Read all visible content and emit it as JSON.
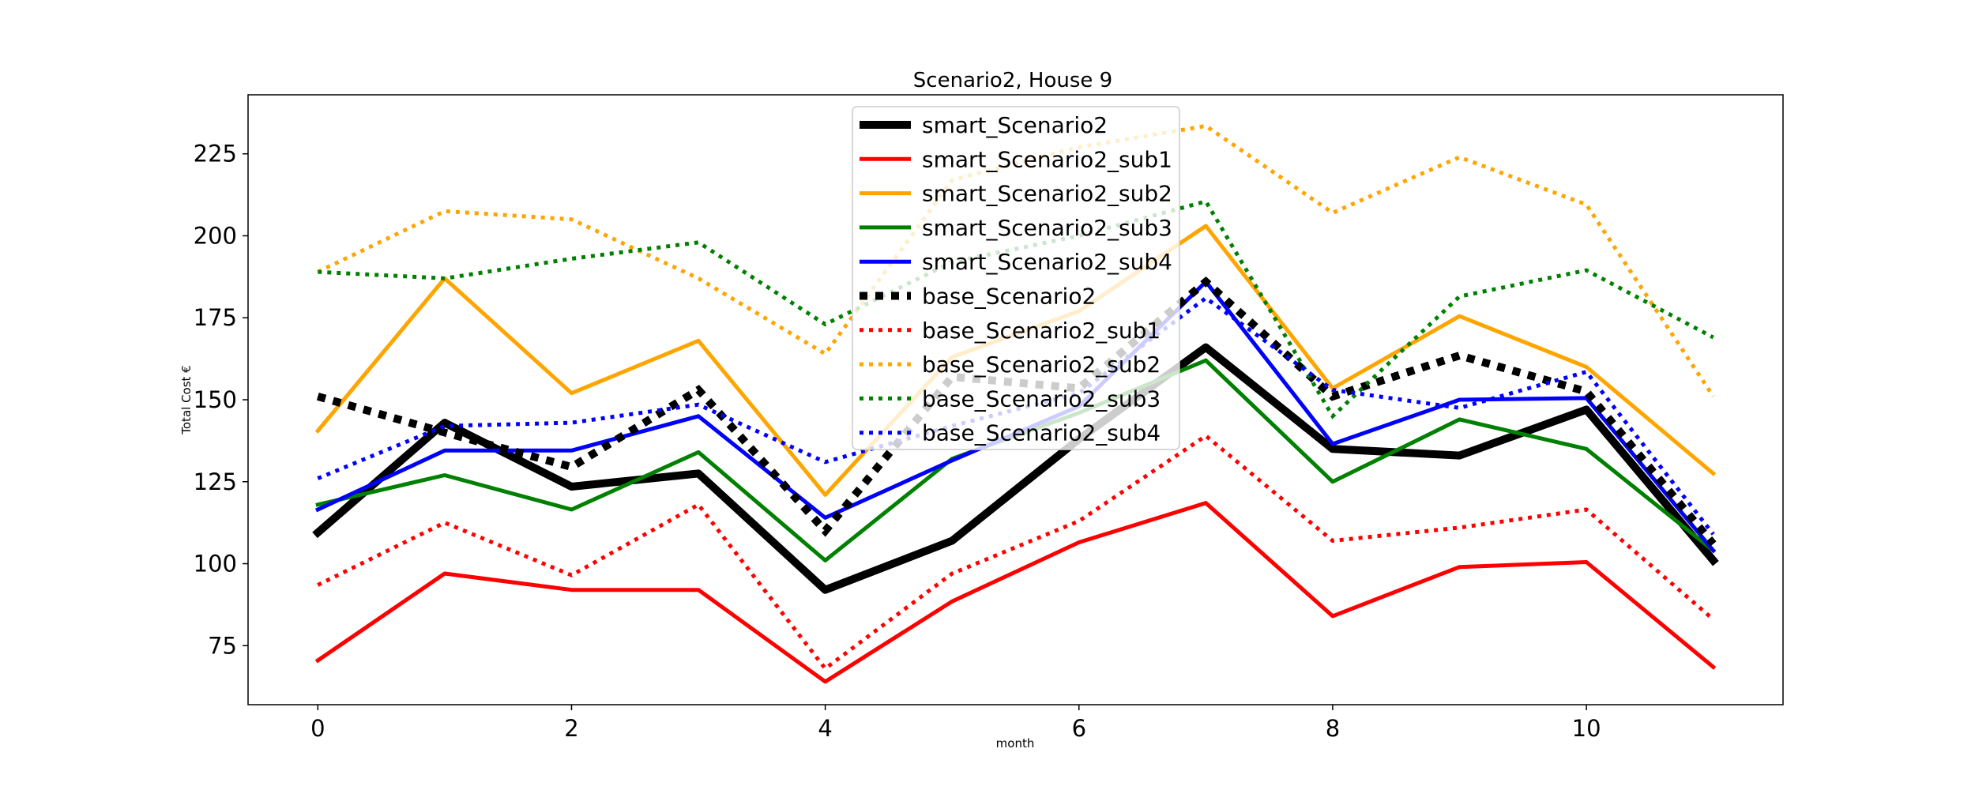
{
  "chart_data": {
    "type": "line",
    "title": "Scenario2, House 9",
    "xlabel": "month",
    "ylabel": "Total Cost €",
    "x": [
      0,
      1,
      2,
      3,
      4,
      5,
      6,
      7,
      8,
      9,
      10,
      11
    ],
    "xticks": [
      "0",
      "2",
      "4",
      "6",
      "8",
      "10"
    ],
    "yticks": [
      "75",
      "100",
      "125",
      "150",
      "175",
      "200",
      "225"
    ],
    "xlim": [
      -0.55,
      11.55
    ],
    "ylim": [
      57,
      243
    ],
    "legend_position": "upper center",
    "grid": false,
    "series": [
      {
        "name": "smart_Scenario2",
        "color": "#000000",
        "style": "solid",
        "width": 10,
        "values": [
          109.5,
          143,
          123.5,
          127.5,
          92,
          107,
          138,
          166,
          135,
          133,
          147,
          101
        ]
      },
      {
        "name": "smart_Scenario2_sub1",
        "color": "#ff0000",
        "style": "solid",
        "width": 5,
        "values": [
          70.5,
          97,
          92,
          92,
          64,
          88.5,
          106.5,
          118.5,
          84,
          99,
          100.5,
          68.5
        ]
      },
      {
        "name": "smart_Scenario2_sub2",
        "color": "#ffa500",
        "style": "solid",
        "width": 5,
        "values": [
          140.5,
          187,
          152,
          168,
          121,
          163,
          177,
          203,
          153.5,
          175.5,
          160,
          127.5
        ]
      },
      {
        "name": "smart_Scenario2_sub3",
        "color": "#008000",
        "style": "solid",
        "width": 5,
        "values": [
          118,
          127,
          116.5,
          134,
          101,
          132,
          146,
          162,
          125,
          144,
          135,
          104
        ]
      },
      {
        "name": "smart_Scenario2_sub4",
        "color": "#0000ff",
        "style": "solid",
        "width": 5,
        "values": [
          116.5,
          134.5,
          134.5,
          145,
          114,
          131.5,
          148,
          186,
          136.5,
          150,
          150.5,
          104
        ]
      },
      {
        "name": "base_Scenario2",
        "color": "#000000",
        "style": "dotted",
        "width": 10,
        "values": [
          151,
          140,
          129.5,
          153,
          110,
          157,
          153.5,
          186,
          151,
          163.5,
          152.5,
          106
        ]
      },
      {
        "name": "base_Scenario2_sub1",
        "color": "#ff0000",
        "style": "dotted",
        "width": 5,
        "values": [
          93.5,
          112.5,
          96.5,
          118,
          68,
          97,
          113,
          139,
          107,
          111,
          116.5,
          83
        ]
      },
      {
        "name": "base_Scenario2_sub2",
        "color": "#ffa500",
        "style": "dotted",
        "width": 5,
        "values": [
          189,
          207.5,
          205,
          187,
          164,
          217,
          227,
          233.5,
          207,
          224,
          209.5,
          151
        ]
      },
      {
        "name": "base_Scenario2_sub3",
        "color": "#008000",
        "style": "dotted",
        "width": 5,
        "values": [
          189,
          187,
          193,
          198,
          173,
          192,
          200,
          210.5,
          145,
          181.5,
          189.5,
          169
        ]
      },
      {
        "name": "base_Scenario2_sub4",
        "color": "#0000ff",
        "style": "dotted",
        "width": 5,
        "values": [
          126,
          142,
          143,
          148.5,
          131,
          142,
          152,
          181,
          153,
          147.5,
          158.5,
          109
        ]
      }
    ]
  }
}
